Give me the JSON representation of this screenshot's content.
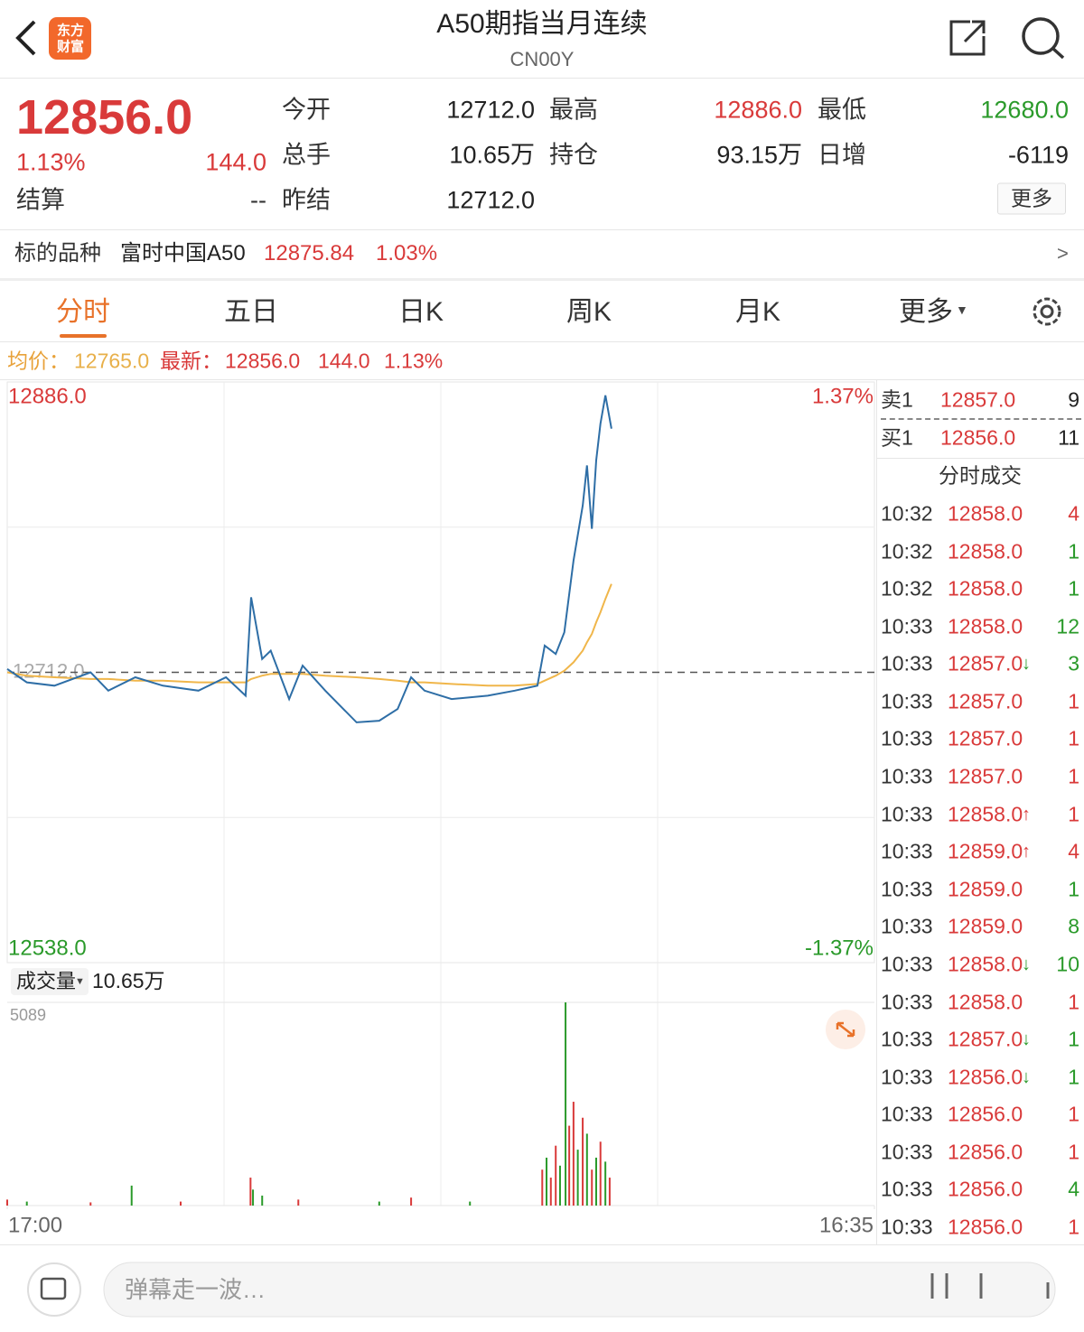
{
  "header": {
    "title": "A50期指当月连续",
    "code": "CN00Y",
    "logo": [
      "东方",
      "财富"
    ]
  },
  "quote": {
    "price": "12856.0",
    "change_pct": "1.13%",
    "change": "144.0",
    "settle": {
      "label": "结算",
      "value": "--"
    },
    "fields": [
      [
        {
          "label": "今开",
          "value": "12712.0"
        },
        {
          "label": "最高",
          "value": "12886.0",
          "color": "#d93a3a"
        },
        {
          "label": "最低",
          "value": "12680.0",
          "color": "#2a9a2a"
        }
      ],
      [
        {
          "label": "总手",
          "value": "10.65万"
        },
        {
          "label": "持仓",
          "value": "93.15万"
        },
        {
          "label": "日增",
          "value": "-6119"
        }
      ],
      [
        {
          "label": "昨结",
          "value": "12712.0"
        }
      ]
    ],
    "more_button": "更多"
  },
  "underlying": {
    "label": "标的品种",
    "name": "富时中国A50",
    "price": "12875.84",
    "change_pct": "1.03%"
  },
  "tabs": {
    "items": [
      "分时",
      "五日",
      "日K",
      "周K",
      "月K",
      "更多"
    ],
    "active": 0
  },
  "summary": {
    "avg_label": "均价：",
    "avg": "12765.0",
    "latest_label": "最新：",
    "latest": "12856.0",
    "change": "144.0",
    "change_pct": "1.13%"
  },
  "chart_data": [
    {
      "type": "line",
      "x": [
        0,
        32,
        77,
        136,
        165,
        209,
        254,
        312,
        357,
        389,
        398,
        416,
        430,
        460,
        482,
        519,
        570,
        607,
        637,
        659,
        681,
        725,
        784,
        828,
        865,
        877,
        895,
        909,
        924,
        939,
        946,
        954,
        961,
        968,
        976,
        986
      ],
      "series": [
        {
          "color": "#2e6ea6",
          "values": [
            12714,
            12706,
            12704,
            12712,
            12701,
            12709,
            12704,
            12701,
            12709,
            12698,
            12757,
            12720,
            12725,
            12696,
            12716,
            12701,
            12682,
            12683,
            12690,
            12709,
            12701,
            12696,
            12698,
            12701,
            12704,
            12728,
            12723,
            12736,
            12779,
            12812,
            12836,
            12798,
            12839,
            12861,
            12878,
            12858
          ]
        },
        {
          "color": "#f0b64a",
          "values": [
            12712,
            12710,
            12709,
            12708,
            12708,
            12707,
            12707,
            12706,
            12706,
            12706,
            12708,
            12710,
            12711,
            12711,
            12711,
            12710,
            12709,
            12708,
            12707,
            12706,
            12706,
            12705,
            12704,
            12704,
            12705,
            12707,
            12710,
            12713,
            12718,
            12725,
            12730,
            12735,
            12742,
            12748,
            12756,
            12765
          ]
        }
      ],
      "xlim": [
        0,
        1415
      ],
      "xticks": [
        {
          "value": 0,
          "label": "17:00"
        },
        {
          "value": 1415,
          "label": "16:35"
        }
      ],
      "ylim": [
        12538,
        12886
      ],
      "yticks": [
        {
          "value": 12886,
          "label": "12886.0"
        },
        {
          "value": 12538,
          "label": "12538.0"
        }
      ],
      "y2lim": [
        -1.37,
        1.37
      ],
      "y2ticks": [
        {
          "value": 1.37,
          "label": "1.37%"
        },
        {
          "value": -1.37,
          "label": "-1.37%"
        }
      ],
      "reference": {
        "value": 12712,
        "label": "12712.0"
      },
      "grid": true
    },
    {
      "type": "bar",
      "label": "成交量",
      "total": "10.65万",
      "x": [
        0,
        32,
        136,
        203,
        283,
        397,
        401,
        416,
        475,
        607,
        659,
        755,
        873,
        880,
        887,
        895,
        902,
        911,
        917,
        924,
        931,
        939,
        946,
        954,
        961,
        968,
        976,
        983
      ],
      "values": [
        150,
        100,
        80,
        500,
        100,
        700,
        400,
        250,
        150,
        100,
        200,
        100,
        900,
        1200,
        700,
        1500,
        1000,
        5089,
        2000,
        2600,
        1400,
        2200,
        1800,
        900,
        1200,
        1600,
        1100,
        700
      ],
      "colors": [
        "#d93a3a",
        "#2a9a2a",
        "#d93a3a",
        "#2a9a2a",
        "#d93a3a",
        "#d93a3a",
        "#2a9a2a",
        "#2a9a2a",
        "#d93a3a",
        "#2a9a2a",
        "#d93a3a",
        "#2a9a2a",
        "#d93a3a",
        "#2a9a2a",
        "#d93a3a",
        "#d93a3a",
        "#2a9a2a",
        "#2a9a2a",
        "#d93a3a",
        "#d93a3a",
        "#2a9a2a",
        "#d93a3a",
        "#2a9a2a",
        "#d93a3a",
        "#2a9a2a",
        "#d93a3a",
        "#2a9a2a",
        "#d93a3a"
      ],
      "xlim": [
        0,
        1415
      ],
      "ylim": [
        0,
        5089
      ],
      "yticks": [
        5089
      ]
    }
  ],
  "order_book": {
    "sell": {
      "label": "卖1",
      "price": "12857.0",
      "volume": "9"
    },
    "buy": {
      "label": "买1",
      "price": "12856.0",
      "volume": "11"
    }
  },
  "trades": {
    "title": "分时成交",
    "rows": [
      {
        "time": "10:32",
        "price": "12858.0",
        "volume": "4",
        "volume_color": "#d93a3a"
      },
      {
        "time": "10:32",
        "price": "12858.0",
        "volume": "1",
        "volume_color": "#2a9a2a"
      },
      {
        "time": "10:32",
        "price": "12858.0",
        "volume": "1",
        "volume_color": "#2a9a2a"
      },
      {
        "time": "10:33",
        "price": "12858.0",
        "volume": "12",
        "volume_color": "#2a9a2a"
      },
      {
        "time": "10:33",
        "price": "12857.0",
        "arrow": "↓",
        "volume": "3",
        "volume_color": "#2a9a2a"
      },
      {
        "time": "10:33",
        "price": "12857.0",
        "volume": "1",
        "volume_color": "#d93a3a"
      },
      {
        "time": "10:33",
        "price": "12857.0",
        "volume": "1",
        "volume_color": "#d93a3a"
      },
      {
        "time": "10:33",
        "price": "12857.0",
        "volume": "1",
        "volume_color": "#d93a3a"
      },
      {
        "time": "10:33",
        "price": "12858.0",
        "arrow": "↑",
        "volume": "1",
        "volume_color": "#d93a3a"
      },
      {
        "time": "10:33",
        "price": "12859.0",
        "arrow": "↑",
        "volume": "4",
        "volume_color": "#d93a3a"
      },
      {
        "time": "10:33",
        "price": "12859.0",
        "volume": "1",
        "volume_color": "#2a9a2a"
      },
      {
        "time": "10:33",
        "price": "12859.0",
        "volume": "8",
        "volume_color": "#2a9a2a"
      },
      {
        "time": "10:33",
        "price": "12858.0",
        "arrow": "↓",
        "volume": "10",
        "volume_color": "#2a9a2a"
      },
      {
        "time": "10:33",
        "price": "12858.0",
        "volume": "1",
        "volume_color": "#d93a3a"
      },
      {
        "time": "10:33",
        "price": "12857.0",
        "arrow": "↓",
        "volume": "1",
        "volume_color": "#2a9a2a"
      },
      {
        "time": "10:33",
        "price": "12856.0",
        "arrow": "↓",
        "volume": "1",
        "volume_color": "#2a9a2a"
      },
      {
        "time": "10:33",
        "price": "12856.0",
        "volume": "1",
        "volume_color": "#d93a3a"
      },
      {
        "time": "10:33",
        "price": "12856.0",
        "volume": "1",
        "volume_color": "#d93a3a"
      },
      {
        "time": "10:33",
        "price": "12856.0",
        "volume": "4",
        "volume_color": "#2a9a2a"
      },
      {
        "time": "10:33",
        "price": "12856.0",
        "volume": "1",
        "volume_color": "#d93a3a"
      }
    ]
  },
  "comment_input": {
    "placeholder": "弹幕走一波…"
  }
}
